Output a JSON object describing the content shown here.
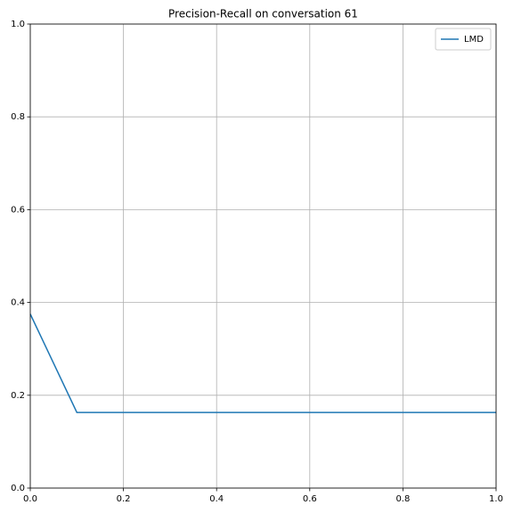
{
  "chart_data": {
    "type": "line",
    "title": "Precision-Recall on conversation 61",
    "x": [
      0,
      0.1,
      1
    ],
    "series": [
      {
        "name": "LMD",
        "color": "#1f77b4",
        "values": [
          0.375,
          0.163,
          0.163
        ]
      }
    ],
    "xlim": [
      0,
      1
    ],
    "ylim": [
      0,
      1
    ],
    "xticks": [
      {
        "value": 0,
        "label": "0.0"
      },
      0.2,
      0.4,
      0.6,
      0.8,
      {
        "value": 1,
        "label": "1.0"
      }
    ],
    "yticks": [
      {
        "value": 0,
        "label": "0.0"
      },
      0.2,
      0.4,
      0.6,
      0.8,
      {
        "value": 1,
        "label": "1.0"
      }
    ],
    "grid": true,
    "legend": "upper right"
  }
}
